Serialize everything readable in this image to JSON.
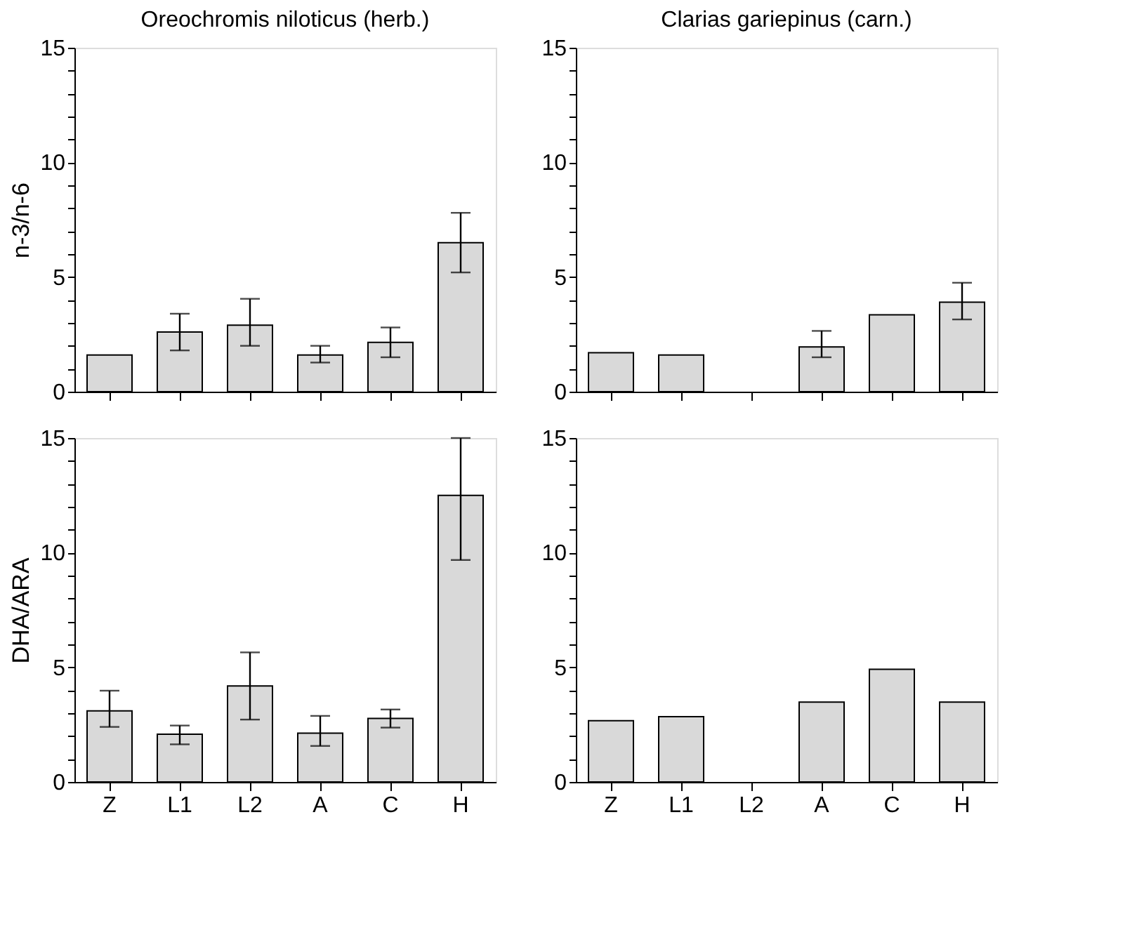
{
  "chart_data": [
    {
      "type": "bar",
      "title": "Oreochromis niloticus (herb.)",
      "ylabel": "n-3/n-6",
      "categories": [
        null,
        null,
        null,
        null,
        null,
        null
      ],
      "tick_labels": "y",
      "grid": false,
      "series": [
        {
          "color": "#d9d9d9",
          "values": [
            1.6,
            2.6,
            2.9,
            1.6,
            2.15,
            6.5
          ],
          "errors": [
            null,
            [
              1.8,
              3.4
            ],
            [
              2.0,
              4.05
            ],
            [
              1.27,
              2.0
            ],
            [
              1.5,
              2.8
            ],
            [
              5.2,
              7.8
            ]
          ]
        }
      ],
      "ylim": [
        0,
        15
      ],
      "yticks": [
        0,
        {
          "value": 1,
          "label": null
        },
        {
          "value": 2,
          "label": null
        },
        {
          "value": 3,
          "label": null
        },
        {
          "value": 4,
          "label": null
        },
        5,
        {
          "value": 6,
          "label": null
        },
        {
          "value": 7,
          "label": null
        },
        {
          "value": 8,
          "label": null
        },
        {
          "value": 9,
          "label": null
        },
        10,
        {
          "value": 11,
          "label": null
        },
        {
          "value": 12,
          "label": null
        },
        {
          "value": 13,
          "label": null
        },
        {
          "value": 14,
          "label": null
        },
        15
      ]
    },
    {
      "type": "bar",
      "title": "Clarias gariepinus (carn.)",
      "categories": [
        null,
        null,
        null,
        null,
        null,
        null
      ],
      "tick_labels": "y",
      "grid": false,
      "series": [
        {
          "color": "#d9d9d9",
          "values": [
            1.7,
            1.6,
            null,
            1.95,
            3.35,
            3.9
          ],
          "errors": [
            null,
            null,
            null,
            [
              1.5,
              2.65
            ],
            null,
            [
              3.15,
              4.75
            ]
          ]
        }
      ],
      "ylim": [
        0,
        15
      ],
      "yticks": [
        0,
        {
          "value": 1,
          "label": null
        },
        {
          "value": 2,
          "label": null
        },
        {
          "value": 3,
          "label": null
        },
        {
          "value": 4,
          "label": null
        },
        5,
        {
          "value": 6,
          "label": null
        },
        {
          "value": 7,
          "label": null
        },
        {
          "value": 8,
          "label": null
        },
        {
          "value": 9,
          "label": null
        },
        10,
        {
          "value": 11,
          "label": null
        },
        {
          "value": 12,
          "label": null
        },
        {
          "value": 13,
          "label": null
        },
        {
          "value": 14,
          "label": null
        },
        15
      ]
    },
    {
      "type": "bar",
      "ylabel": "DHA/ARA",
      "categories": [
        "Z",
        "L1",
        "L2",
        "A",
        "C",
        "H"
      ],
      "grid": false,
      "series": [
        {
          "color": "#d9d9d9",
          "values": [
            3.1,
            2.08,
            4.19,
            2.13,
            2.77,
            12.5
          ],
          "errors": [
            [
              2.4,
              3.98
            ],
            [
              1.64,
              2.46
            ],
            [
              2.72,
              5.65
            ],
            [
              1.57,
              2.88
            ],
            [
              2.37,
              3.16
            ],
            [
              9.68,
              15
            ]
          ]
        }
      ],
      "ylim": [
        0,
        15
      ],
      "yticks": [
        0,
        {
          "value": 1,
          "label": null
        },
        {
          "value": 2,
          "label": null
        },
        {
          "value": 3,
          "label": null
        },
        {
          "value": 4,
          "label": null
        },
        5,
        {
          "value": 6,
          "label": null
        },
        {
          "value": 7,
          "label": null
        },
        {
          "value": 8,
          "label": null
        },
        {
          "value": 9,
          "label": null
        },
        10,
        {
          "value": 11,
          "label": null
        },
        {
          "value": 12,
          "label": null
        },
        {
          "value": 13,
          "label": null
        },
        {
          "value": 14,
          "label": null
        },
        15
      ]
    },
    {
      "type": "bar",
      "categories": [
        "Z",
        "L1",
        "L2",
        "A",
        "C",
        "H"
      ],
      "grid": false,
      "series": [
        {
          "color": "#d9d9d9",
          "values": [
            2.67,
            2.85,
            null,
            3.48,
            4.91,
            3.48
          ]
        }
      ],
      "ylim": [
        0,
        15
      ],
      "yticks": [
        0,
        {
          "value": 1,
          "label": null
        },
        {
          "value": 2,
          "label": null
        },
        {
          "value": 3,
          "label": null
        },
        {
          "value": 4,
          "label": null
        },
        5,
        {
          "value": 6,
          "label": null
        },
        {
          "value": 7,
          "label": null
        },
        {
          "value": 8,
          "label": null
        },
        {
          "value": 9,
          "label": null
        },
        10,
        {
          "value": 11,
          "label": null
        },
        {
          "value": 12,
          "label": null
        },
        {
          "value": 13,
          "label": null
        },
        {
          "value": 14,
          "label": null
        },
        15
      ]
    }
  ]
}
